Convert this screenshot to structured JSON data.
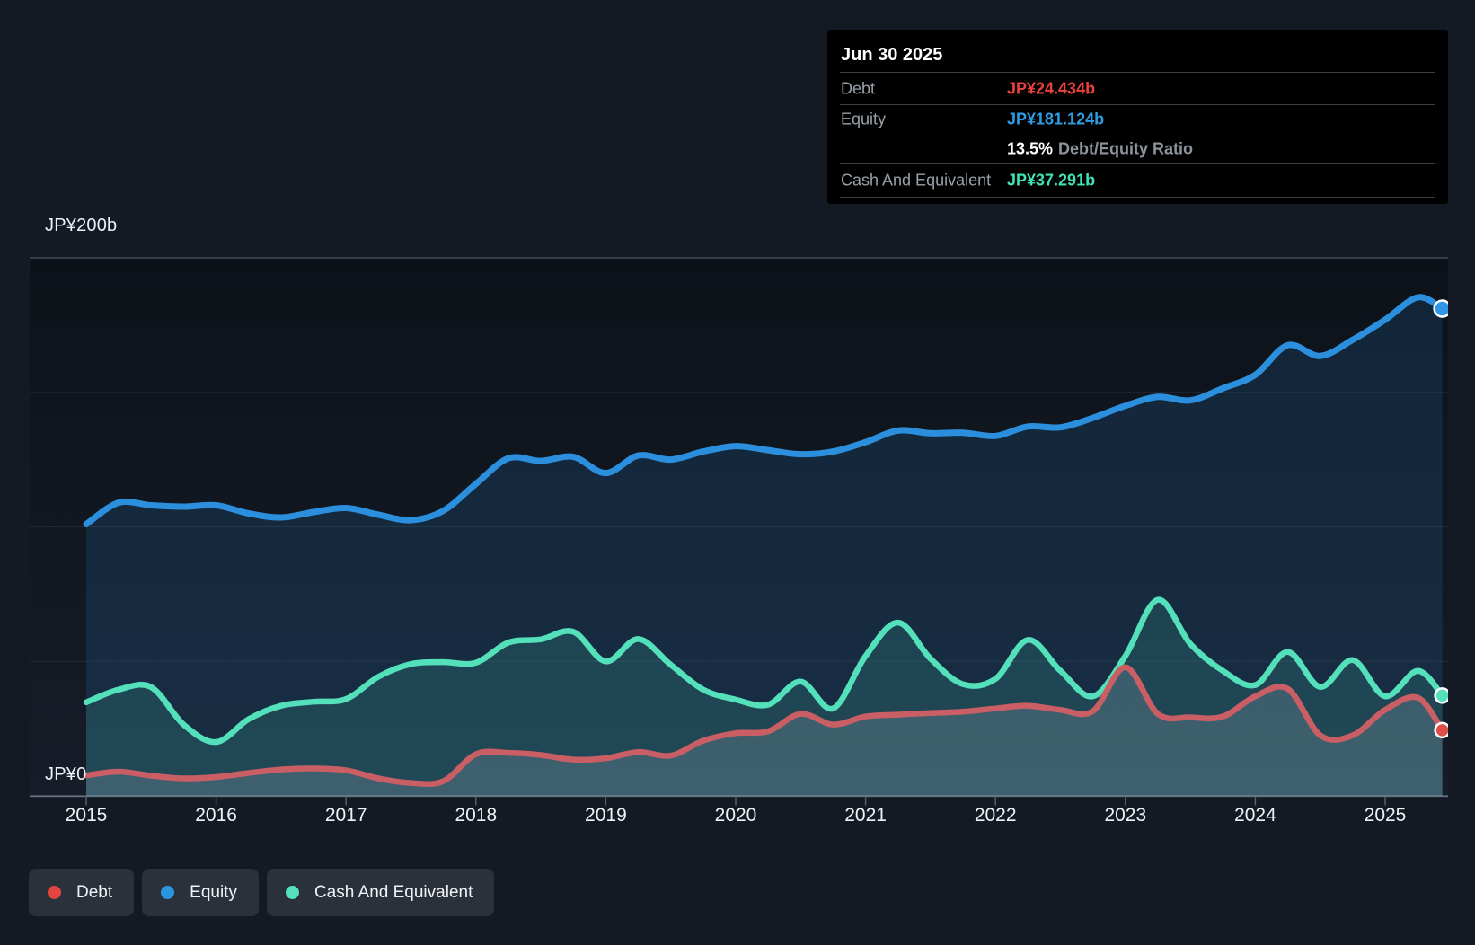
{
  "tooltip": {
    "title": "Jun 30 2025",
    "debt": {
      "label": "Debt",
      "value": "JP¥24.434b",
      "color": "#e8423d"
    },
    "equity": {
      "label": "Equity",
      "value": "JP¥181.124b",
      "color": "#2f9ce4"
    },
    "ratio": {
      "value": "13.5%",
      "label": "Debt/Equity Ratio"
    },
    "cash": {
      "label": "Cash And Equivalent",
      "value": "JP¥37.291b",
      "color": "#41e2b4"
    }
  },
  "legend": [
    {
      "label": "Debt",
      "color": "#e2463f"
    },
    {
      "label": "Equity",
      "color": "#2b96e0"
    },
    {
      "label": "Cash And Equivalent",
      "color": "#53e0bb"
    }
  ],
  "chart_data": {
    "type": "area",
    "title": "Debt, Equity and Cash history",
    "x_unit": "decimal_year",
    "xlim": [
      2015.0,
      2025.5
    ],
    "ylim": [
      0,
      200
    ],
    "y_gridline_values": [
      0,
      50,
      100,
      150,
      200
    ],
    "y_axis_labels": {
      "top": "JP¥200b",
      "zero": "JP¥0"
    },
    "x_tick_years": [
      2015,
      2016,
      2017,
      2018,
      2019,
      2020,
      2021,
      2022,
      2023,
      2024,
      2025
    ],
    "x_tick_labels": [
      "2015",
      "2016",
      "2017",
      "2018",
      "2019",
      "2020",
      "2021",
      "2022",
      "2023",
      "2024",
      "2025"
    ],
    "legend_position": "bottom-left",
    "grid": true,
    "x": [
      2015.0,
      2015.25,
      2015.5,
      2015.75,
      2016.0,
      2016.25,
      2016.5,
      2016.75,
      2017.0,
      2017.25,
      2017.5,
      2017.75,
      2018.0,
      2018.25,
      2018.5,
      2018.75,
      2019.0,
      2019.25,
      2019.5,
      2019.75,
      2020.0,
      2020.25,
      2020.5,
      2020.75,
      2021.0,
      2021.25,
      2021.5,
      2021.75,
      2022.0,
      2022.25,
      2022.5,
      2022.75,
      2023.0,
      2023.25,
      2023.5,
      2023.75,
      2024.0,
      2024.25,
      2024.5,
      2024.75,
      2025.0,
      2025.25,
      2025.44
    ],
    "series": [
      {
        "name": "Equity",
        "unit": "JP¥ billions",
        "color": "#2b8fdd",
        "fill": "rgba(41,137,216,0.16)",
        "line_width": 7,
        "marker_r": 9,
        "values": [
          101,
          109,
          108,
          107.5,
          108,
          105,
          103.5,
          105.5,
          107,
          104.5,
          102.5,
          106,
          116,
          125.5,
          124.5,
          126,
          120,
          126.5,
          125,
          128,
          130,
          128.5,
          127,
          128,
          131.5,
          135.8,
          134.8,
          135,
          133.8,
          137.3,
          137,
          140.5,
          145,
          148.3,
          147,
          151.5,
          156.5,
          167.5,
          163.5,
          169.5,
          177,
          185.3,
          181.124
        ]
      },
      {
        "name": "Cash And Equivalent",
        "unit": "JP¥ billions",
        "color": "#53e0bb",
        "fill": "rgba(83,224,187,0.15)",
        "line_width": 6.5,
        "marker_r": 8,
        "values": [
          34.8,
          39.5,
          40.4,
          26.5,
          20,
          28.5,
          33.5,
          35,
          36,
          44.3,
          49,
          49.7,
          49.5,
          57,
          58.2,
          61,
          50,
          58.3,
          48.7,
          39.5,
          35.8,
          33.9,
          42.5,
          32.5,
          52,
          64.4,
          51,
          41.5,
          43.5,
          58,
          46.5,
          37,
          52,
          72.9,
          56.5,
          46.5,
          41.2,
          53.5,
          40.5,
          50.5,
          37,
          46.5,
          37.291
        ]
      },
      {
        "name": "Debt",
        "unit": "JP¥ billions",
        "color": "#c95f64",
        "fill": "rgba(208,216,230,0.17)",
        "line_width": 6.5,
        "marker_r": 8,
        "values": [
          7.6,
          9,
          7.5,
          6.5,
          7,
          8.5,
          9.8,
          10.2,
          9.5,
          6.5,
          4.8,
          5.5,
          15.5,
          16,
          15.2,
          13.5,
          14,
          16.3,
          15,
          20.5,
          23.3,
          24,
          30.5,
          26.5,
          29.5,
          30.2,
          30.8,
          31.3,
          32.5,
          33.5,
          32,
          31.5,
          47.8,
          30.5,
          29.2,
          29.5,
          37,
          39.8,
          22.5,
          22.5,
          32,
          36.5,
          24.434
        ]
      }
    ],
    "end_markers": {
      "Equity": "#2f95e5",
      "Cash And Equivalent": "#53e0bb",
      "Debt": "#dd4f4a"
    }
  },
  "colors": {
    "background": "#141a23",
    "plot_top": "#0d1219",
    "plot_bottom": "#161d28",
    "gridline_strong": "rgba(190,200,215,0.30)",
    "gridline_faint": "rgba(190,200,215,0.10)",
    "tooltip_bg": "#000000"
  }
}
